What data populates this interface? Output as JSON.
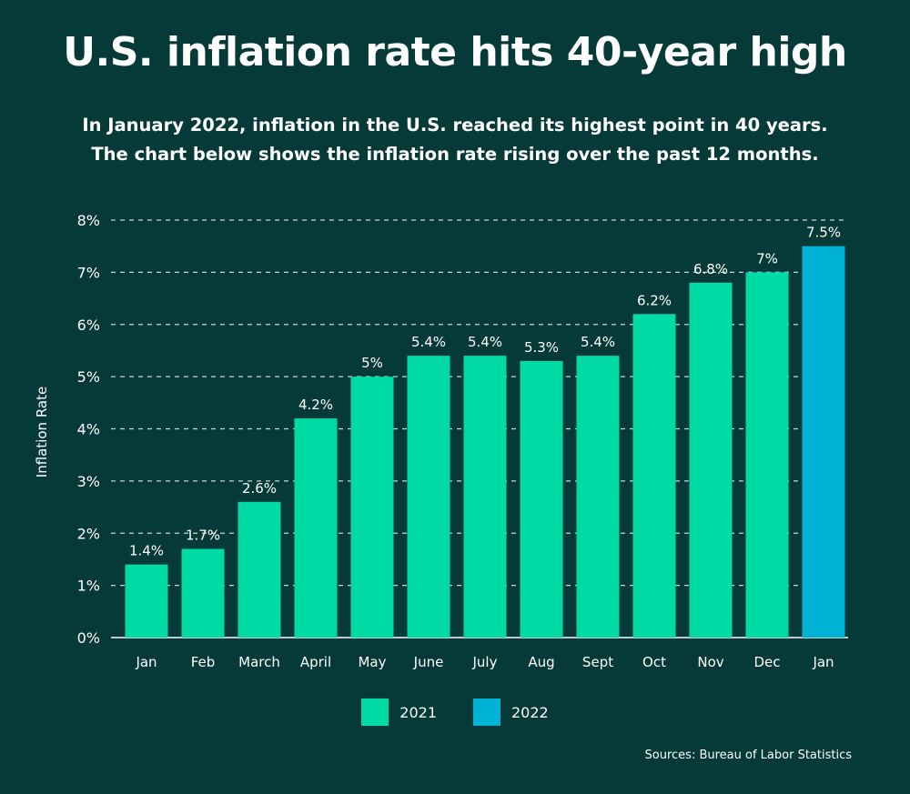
{
  "header": {
    "title": "U.S. inflation rate hits 40-year high",
    "subtitle_line1": "In January 2022, inflation in the U.S. reached its highest point in 40 years.",
    "subtitle_line2": "The chart below shows the inflation rate rising over the past 12 months."
  },
  "source": "Sources: Bureau of Labor Statistics",
  "colors": {
    "background": "#063a39",
    "bar_2021": "#00dba6",
    "bar_2022": "#00b2d6",
    "grid": "#c9d6d4",
    "text": "#ffffff"
  },
  "chart_data": {
    "type": "bar",
    "ylabel": "Inflation Rate",
    "xlabel": "",
    "ylim": [
      0,
      8
    ],
    "y_ticks": [
      "0%",
      "1%",
      "2%",
      "3%",
      "4%",
      "5%",
      "6%",
      "7%",
      "8%"
    ],
    "grid": true,
    "legend_position": "bottom-center",
    "categories": [
      "Jan",
      "Feb",
      "March",
      "April",
      "May",
      "June",
      "July",
      "Aug",
      "Sept",
      "Oct",
      "Nov",
      "Dec",
      "Jan"
    ],
    "values": [
      1.4,
      1.7,
      2.6,
      4.2,
      5,
      5.4,
      5.4,
      5.3,
      5.4,
      6.2,
      6.8,
      7,
      7.5
    ],
    "data_labels": [
      "1.4%",
      "1.7%",
      "2.6%",
      "4.2%",
      "5%",
      "5.4%",
      "5.4%",
      "5.3%",
      "5.4%",
      "6.2%",
      "6.8%",
      "7%",
      "7.5%"
    ],
    "year_of_bar": [
      "2021",
      "2021",
      "2021",
      "2021",
      "2021",
      "2021",
      "2021",
      "2021",
      "2021",
      "2021",
      "2021",
      "2021",
      "2022"
    ],
    "legend": [
      {
        "name": "2021",
        "color": "#00dba6"
      },
      {
        "name": "2022",
        "color": "#00b2d6"
      }
    ]
  }
}
